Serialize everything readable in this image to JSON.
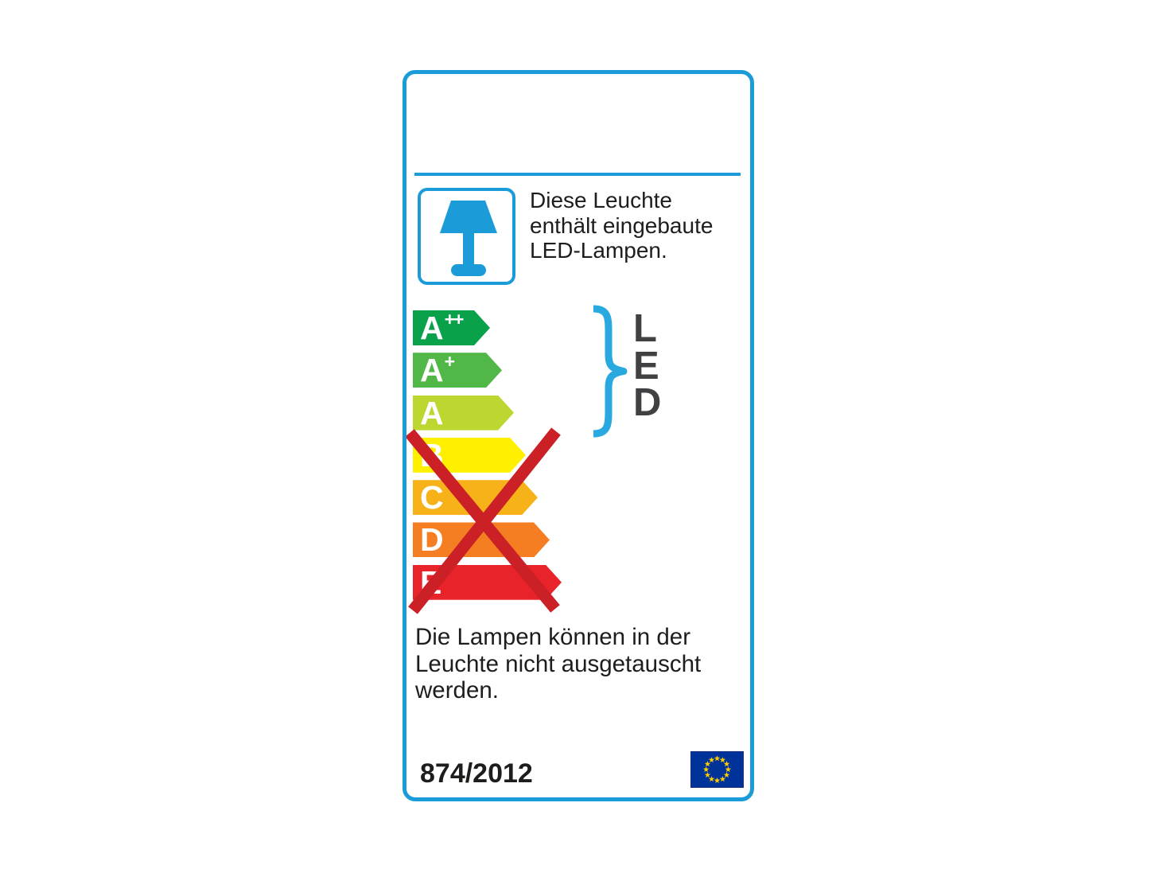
{
  "header_note": {
    "icon": "table-lamp-icon",
    "text": "Diese Leuchte\nenthält eingebaute\nLED-Lampen."
  },
  "efficiency_scale": {
    "classes": [
      {
        "grade": "A",
        "superscript": "++",
        "color": "#0aa14b"
      },
      {
        "grade": "A",
        "superscript": "+",
        "color": "#51b747"
      },
      {
        "grade": "A",
        "superscript": "",
        "color": "#bed630"
      },
      {
        "grade": "B",
        "superscript": "",
        "color": "#fff000"
      },
      {
        "grade": "C",
        "superscript": "",
        "color": "#f8b219"
      },
      {
        "grade": "D",
        "superscript": "",
        "color": "#f47e21"
      },
      {
        "grade": "E",
        "superscript": "",
        "color": "#e8242a"
      }
    ],
    "crossed_out_grades": [
      "B",
      "C",
      "D",
      "E"
    ],
    "brace_annotation": "LED"
  },
  "footer": {
    "replace_note": "Die Lampen können in der\nLeuchte nicht ausgetauscht\nwerden.",
    "regulation_number": "874/2012",
    "flag": "eu-flag-icon"
  },
  "colors": {
    "frame_blue": "#1b9cd8",
    "brace_blue": "#2aa9e1",
    "cross_red": "#cb2026",
    "led_text_gray": "#414042",
    "text_black": "#1d1d1b",
    "eu_flag_blue": "#003399",
    "eu_star_yellow": "#ffcc00"
  }
}
